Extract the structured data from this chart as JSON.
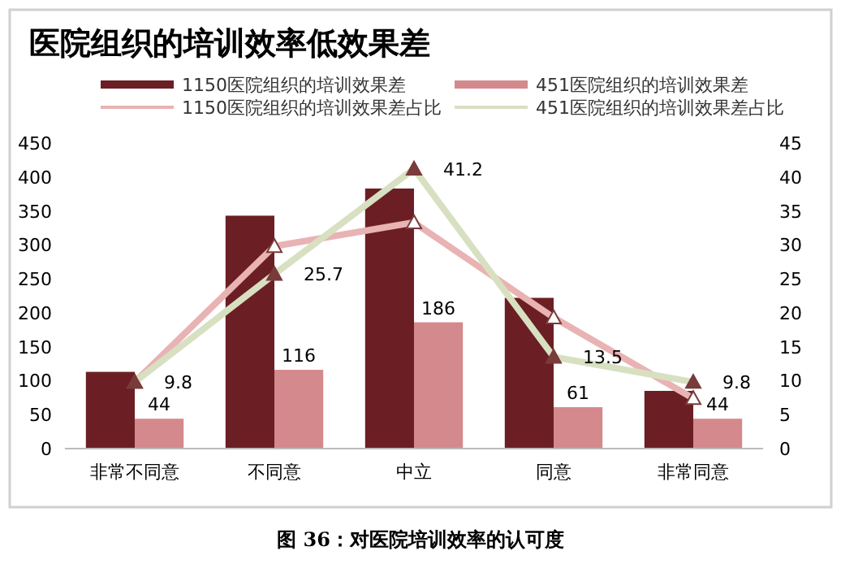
{
  "chart_data": {
    "type": "bar",
    "title": "医院组织的培训效率低效果差",
    "categories": [
      "非常不同意",
      "不同意",
      "中立",
      "同意",
      "非常同意"
    ],
    "series": [
      {
        "name": "1150医院组织的培训效果差",
        "color": "#6b1f24",
        "values": [
          113,
          343,
          383,
          222,
          85
        ]
      },
      {
        "name": "451医院组织的培训效果差",
        "color": "#d4898c",
        "values": [
          44,
          116,
          186,
          61,
          44
        ],
        "value_labels": [
          "44",
          "116",
          "186",
          "61",
          "44"
        ]
      },
      {
        "name": "1150医院组织的培训效果差占比",
        "type": "line",
        "axis": "y2",
        "color": "#e9b3b3",
        "values": [
          9.8,
          29.8,
          33.3,
          19.3,
          7.4
        ]
      },
      {
        "name": "451医院组织的培训效果差占比",
        "type": "line",
        "axis": "y2",
        "color": "#d8e0c2",
        "values": [
          9.8,
          25.7,
          41.2,
          13.5,
          9.8
        ],
        "value_labels": [
          "9.8",
          "25.7",
          "41.2",
          "13.5",
          "9.8"
        ]
      }
    ],
    "ylim": [
      0,
      450
    ],
    "yticks": [
      0,
      50,
      100,
      150,
      200,
      250,
      300,
      350,
      400,
      450
    ],
    "y2lim": [
      0,
      45
    ],
    "y2ticks": [
      0,
      5,
      10,
      15,
      20,
      25,
      30,
      35,
      40,
      45
    ],
    "marker": "triangle",
    "legend": "top",
    "grid": false,
    "annotations": [
      "图 36：对医院培训效率的认可度"
    ]
  }
}
